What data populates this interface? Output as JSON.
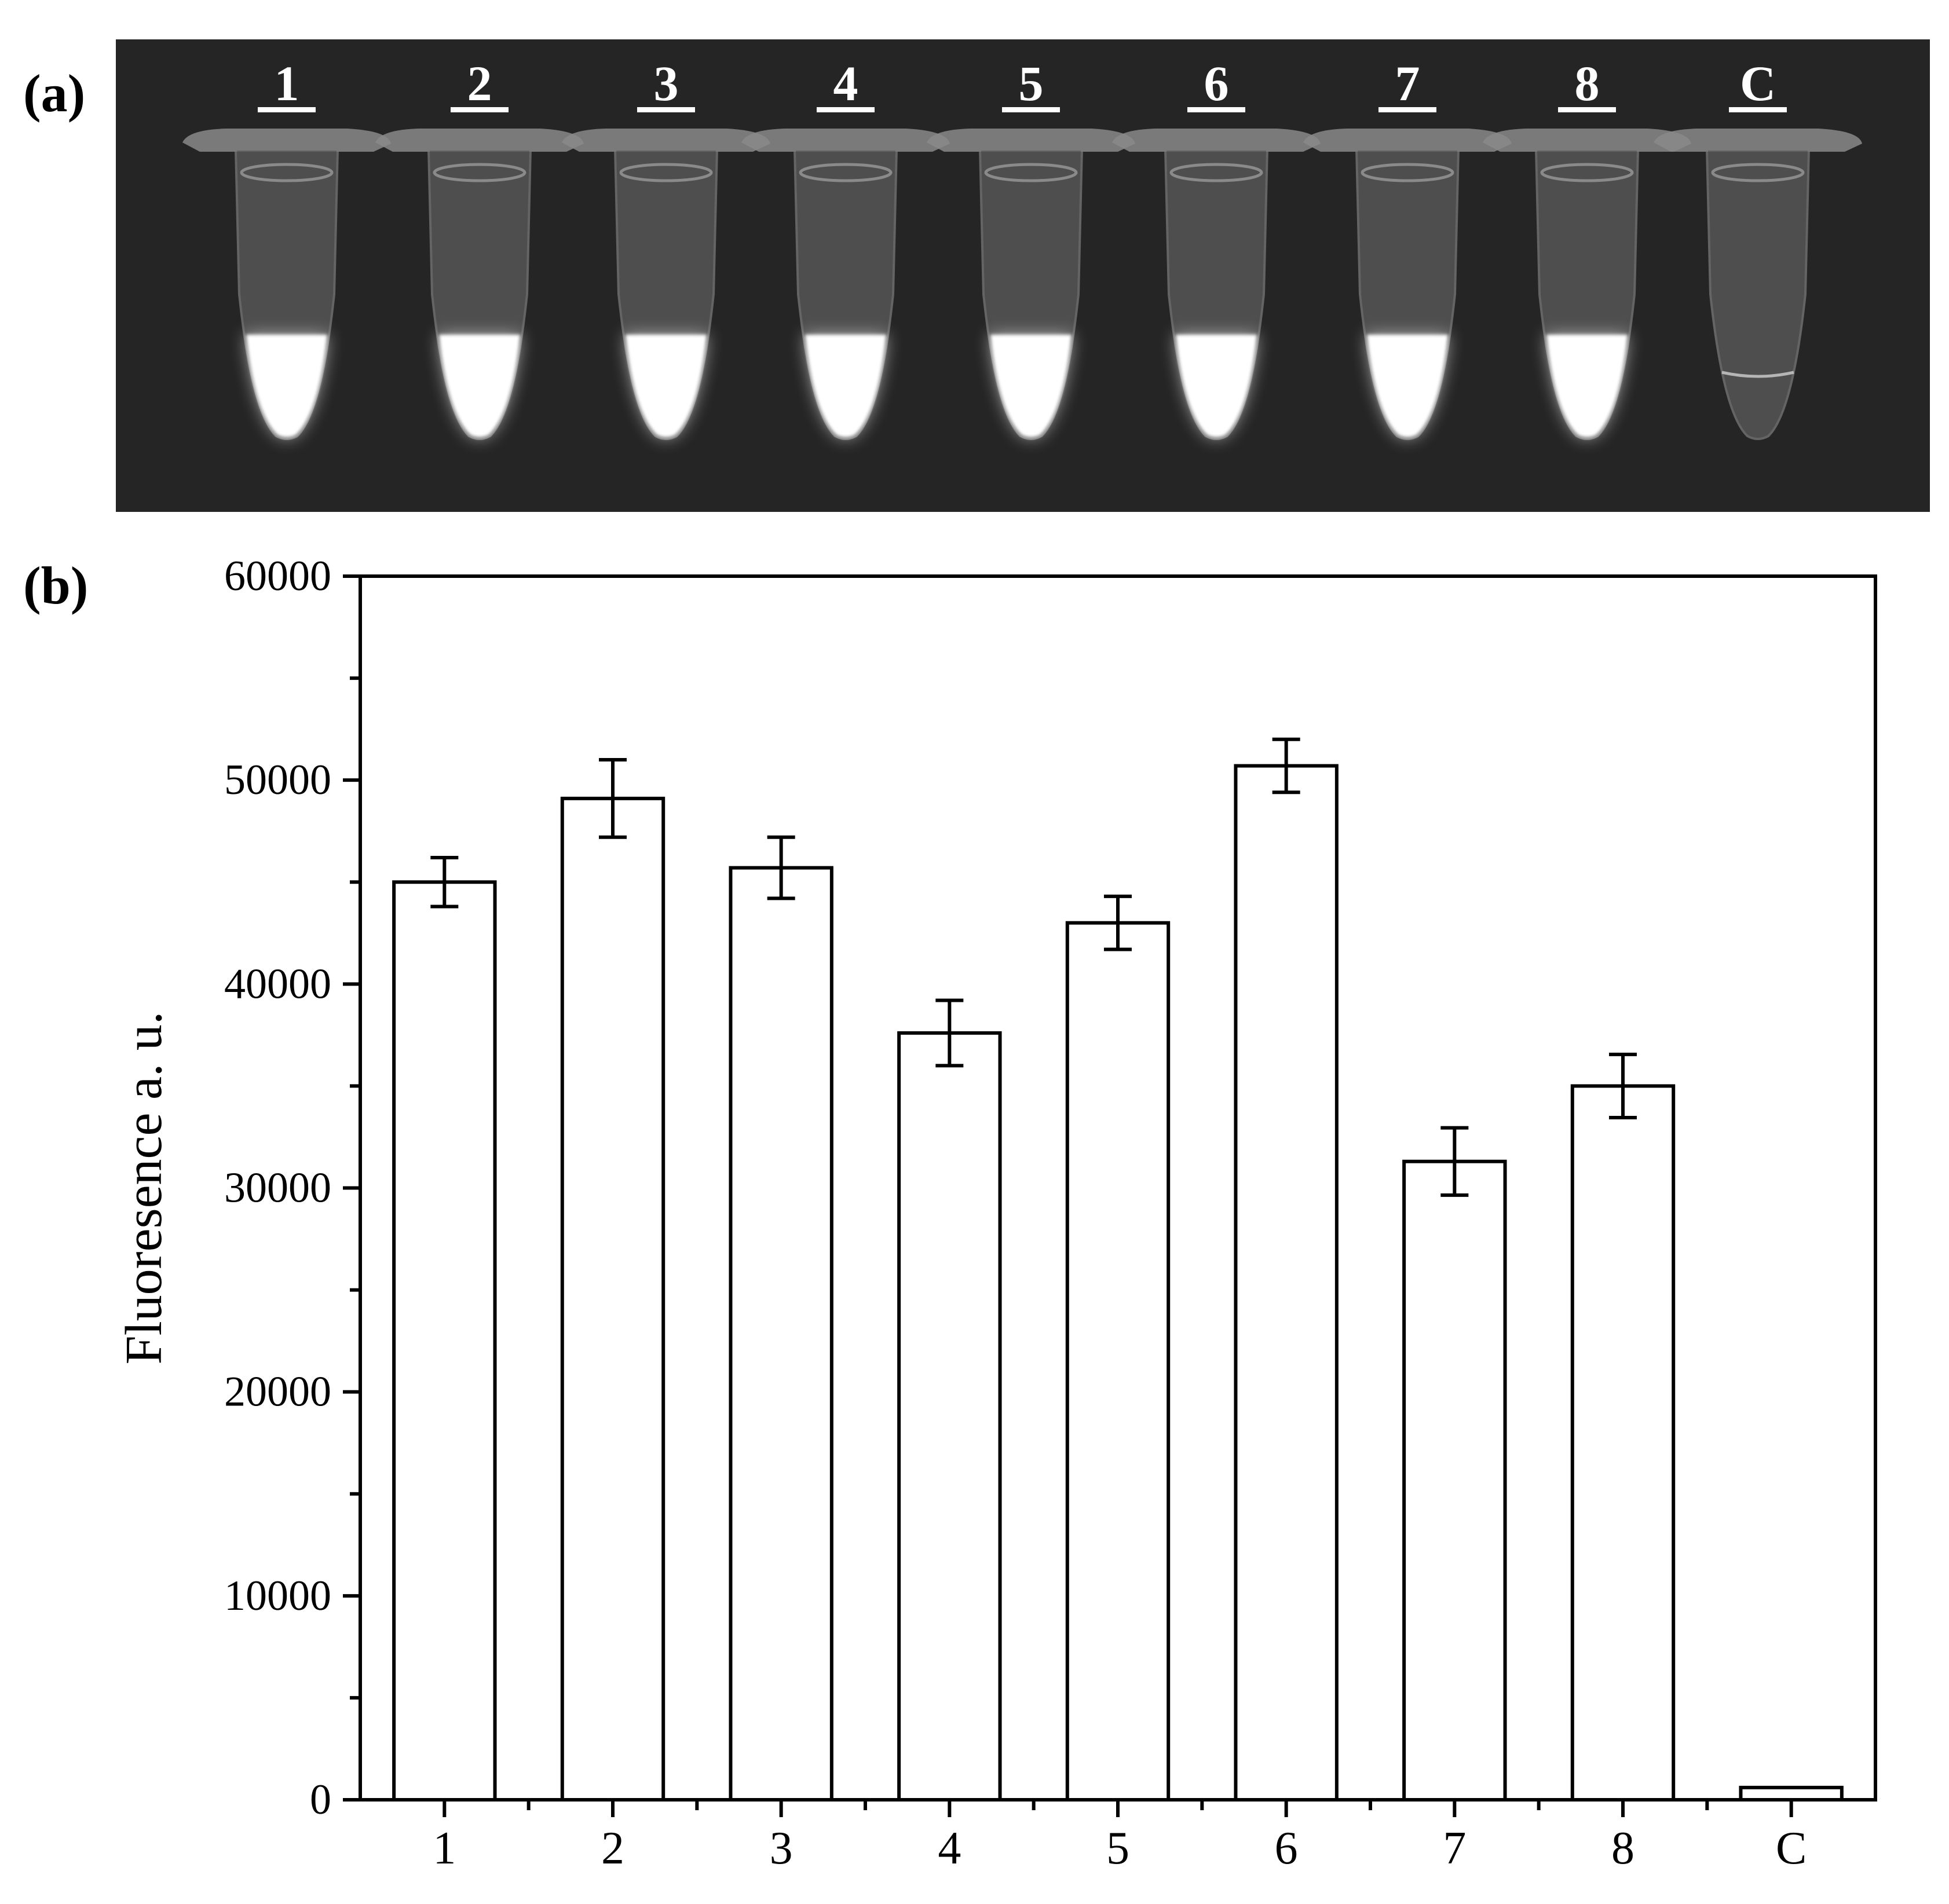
{
  "panels": {
    "a": "(a)",
    "b": "(b)"
  },
  "photo": {
    "tube_labels": [
      "1",
      "2",
      "3",
      "4",
      "5",
      "6",
      "7",
      "8",
      "C"
    ]
  },
  "colors": {
    "photo_background": "#252525",
    "tube_glow": "#ffffff",
    "bar_fill": "#ffffff",
    "bar_stroke": "#000000"
  },
  "chart_data": {
    "type": "bar",
    "title": "",
    "xlabel": "",
    "ylabel": "Fluoresence a. u.",
    "categories": [
      "1",
      "2",
      "3",
      "4",
      "5",
      "6",
      "7",
      "8",
      "C"
    ],
    "values": [
      45000,
      49100,
      45700,
      37600,
      43000,
      50700,
      31300,
      35000,
      600
    ],
    "errors": [
      1200,
      1900,
      1500,
      1600,
      1300,
      1300,
      1650,
      1550,
      80
    ],
    "ylim": [
      0,
      60000
    ],
    "yticks": [
      "0",
      "10000",
      "20000",
      "30000",
      "40000",
      "50000",
      "60000"
    ],
    "grid": false,
    "legend": "none"
  }
}
